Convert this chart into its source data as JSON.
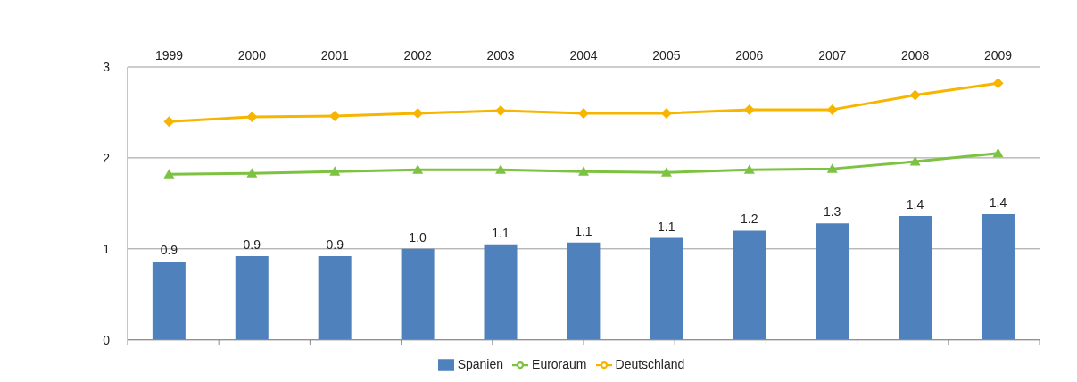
{
  "chart_data": {
    "type": "bar",
    "categories": [
      "1999",
      "2000",
      "2001",
      "2002",
      "2003",
      "2004",
      "2005",
      "2006",
      "2007",
      "2008",
      "2009"
    ],
    "series": [
      {
        "name": "Spanien",
        "color": "#4f81bd",
        "values": [
          0.86,
          0.92,
          0.92,
          1.0,
          1.05,
          1.07,
          1.12,
          1.2,
          1.28,
          1.36,
          1.38
        ],
        "value_labels": [
          "0.9",
          "0.9",
          "0.9",
          "1.0",
          "1.1",
          "1.1",
          "1.1",
          "1.2",
          "1.3",
          "1.4",
          "1.4"
        ]
      },
      {
        "name": "Euroraum",
        "type": "line",
        "color": "#7dc242",
        "marker": "triangle",
        "values": [
          1.82,
          1.83,
          1.85,
          1.87,
          1.87,
          1.85,
          1.84,
          1.87,
          1.88,
          1.96,
          2.05
        ]
      },
      {
        "name": "Deutschland",
        "type": "line",
        "color": "#f7b500",
        "marker": "diamond",
        "values": [
          2.4,
          2.45,
          2.46,
          2.49,
          2.52,
          2.49,
          2.49,
          2.53,
          2.53,
          2.69,
          2.82
        ]
      }
    ],
    "ylim": [
      0,
      3
    ],
    "yticks": [
      0,
      1,
      2,
      3
    ],
    "grid": "y",
    "legend": "bottom"
  }
}
